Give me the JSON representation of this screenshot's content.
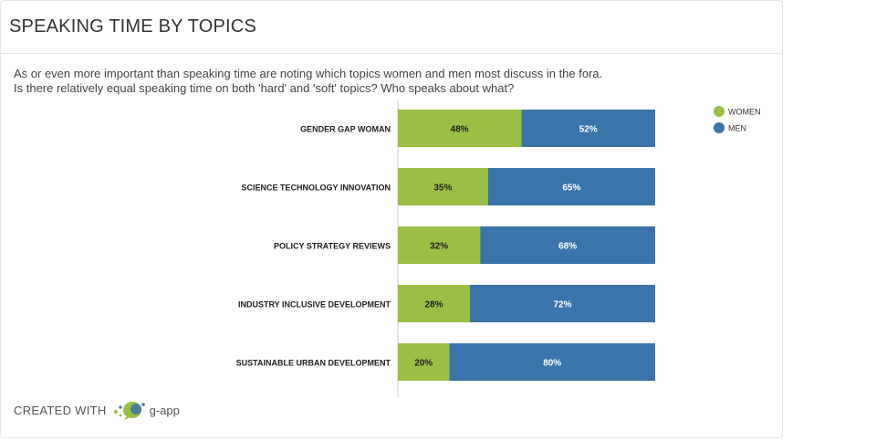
{
  "title": "SPEAKING TIME BY TOPICS",
  "description": [
    "As or even more important than speaking time are noting which topics women and men most discuss in the fora.",
    "Is there relatively equal speaking time on both 'hard' and 'soft' topics? Who speaks about what?"
  ],
  "footer": {
    "created_label": "CREATED WITH",
    "brand": "g-app"
  },
  "colors": {
    "women": "#9bbf45",
    "men": "#3a74ab"
  },
  "chart_data": {
    "type": "bar",
    "orientation": "horizontal",
    "stacked": true,
    "categories": [
      "GENDER GAP WOMAN",
      "SCIENCE TECHNOLOGY INNOVATION",
      "POLICY STRATEGY REVIEWS",
      "INDUSTRY INCLUSIVE DEVELOPMENT",
      "SUSTAINABLE URBAN DEVELOPMENT"
    ],
    "series": [
      {
        "name": "WOMEN",
        "values": [
          48,
          35,
          32,
          28,
          20
        ],
        "labels": [
          "48%",
          "35%",
          "32%",
          "28%",
          "20%"
        ]
      },
      {
        "name": "MEN",
        "values": [
          52,
          65,
          68,
          72,
          80
        ],
        "labels": [
          "52%",
          "65%",
          "68%",
          "72%",
          "80%"
        ]
      }
    ],
    "xlim": [
      0,
      100
    ],
    "legend": "top-right",
    "grid": false
  }
}
